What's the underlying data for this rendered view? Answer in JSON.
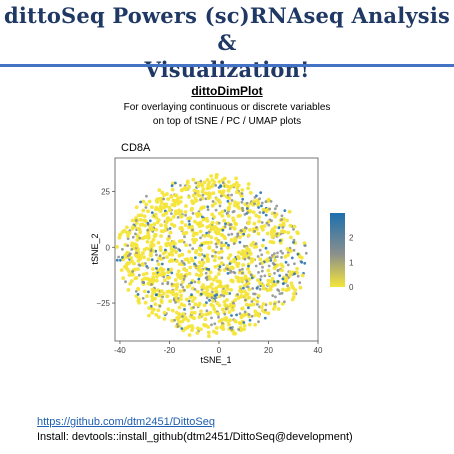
{
  "slide": {
    "title_line1": "dittoSeq Powers (sc)RNAseq Analysis &",
    "title_line2": "Visualization!",
    "function_name": "dittoDimPlot",
    "description_line1": "For overlaying continuous or discrete variables",
    "description_line2": "on top of tSNE / PC / UMAP plots",
    "link": "https://github.com/dtm2451/DittoSeq",
    "install": "Install: devtools::install_github(dtm2451/DittoSeq@development)"
  },
  "colors": {
    "title": "#1f3864",
    "rule": "#4472c4",
    "point_low": "#f4e53a",
    "point_high": "#1c6fae",
    "point_mid": "#8a8f8c",
    "link": "#1f5fb3"
  },
  "chart_data": {
    "type": "scatter",
    "title": "CD8A",
    "xlabel": "tSNE_1",
    "ylabel": "tSNE_2",
    "xlim": [
      -42,
      40
    ],
    "ylim": [
      -42,
      40
    ],
    "xticks": [
      -40,
      -20,
      0,
      20,
      40
    ],
    "yticks": [
      -25,
      0,
      25
    ],
    "grid": false,
    "legend_placement": "right",
    "color_scale": {
      "min": 0,
      "max": 3,
      "ticks": [
        0,
        1,
        2
      ],
      "colors": [
        "#f4e53a",
        "#8a8f8c",
        "#1c6fae"
      ]
    },
    "cluster_shape": {
      "center": [
        -3,
        -4
      ],
      "radius_x": 37,
      "radius_y": 35
    },
    "points_description": "dense cloud of thousands of cells; most at expression 0 (yellow), with scattered grey/blue higher-expression cells, denser toward right-center"
  }
}
